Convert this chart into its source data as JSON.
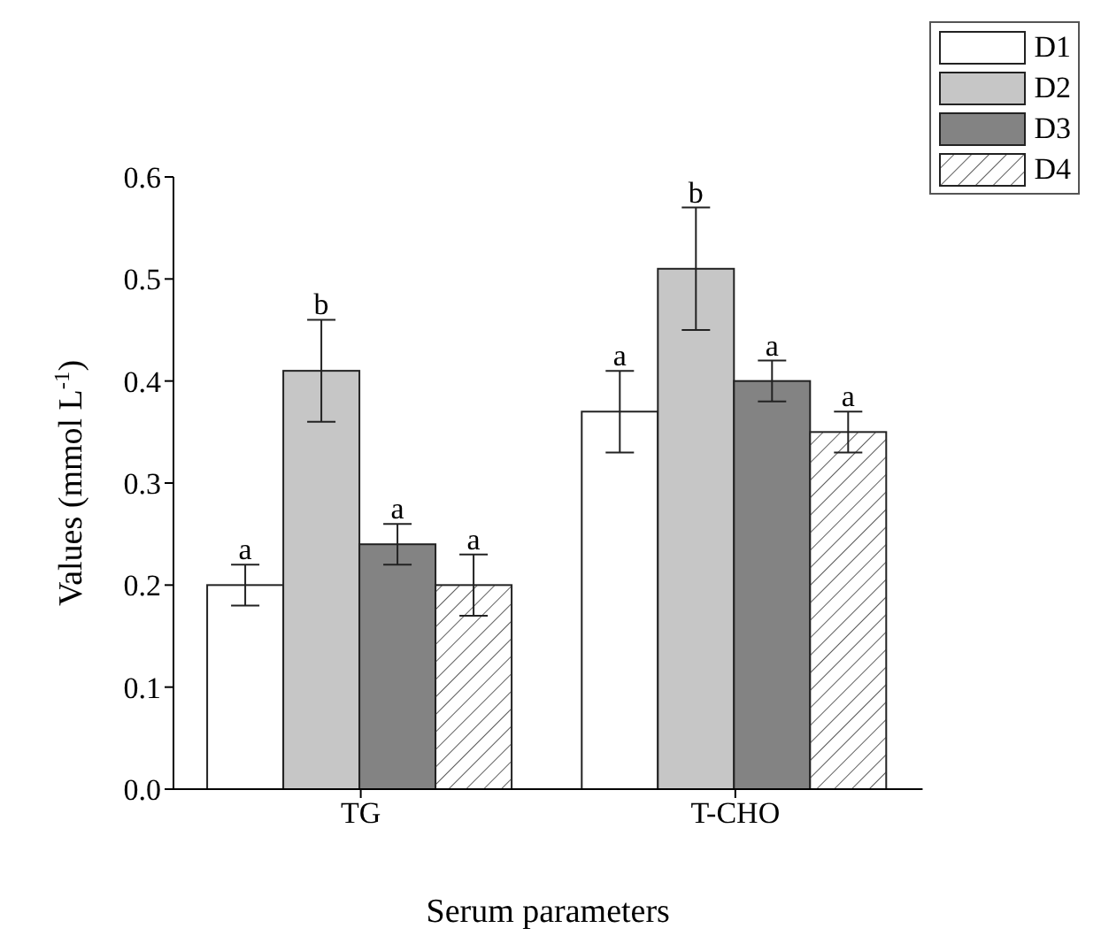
{
  "chart_data": {
    "type": "bar",
    "xlabel": "Serum parameters",
    "ylabel": "Values (mmol L$^{-1}$)",
    "categories": [
      "TG",
      "T-CHO"
    ],
    "series": [
      {
        "name": "D1",
        "color": "#ffffff",
        "values": [
          0.2,
          0.37
        ],
        "errors": [
          0.02,
          0.04
        ]
      },
      {
        "name": "D2",
        "color": "#c6c6c6",
        "values": [
          0.41,
          0.51
        ],
        "errors": [
          0.05,
          0.06
        ]
      },
      {
        "name": "D3",
        "color": "#838383",
        "values": [
          0.24,
          0.4
        ],
        "errors": [
          0.02,
          0.02
        ]
      },
      {
        "name": "D4",
        "color": "#ffffff",
        "values": [
          0.2,
          0.35
        ],
        "errors": [
          0.03,
          0.02
        ]
      }
    ],
    "ylim": [
      0,
      0.6
    ],
    "yticks": [
      {
        "value": 0,
        "label": "0.0"
      },
      0.1,
      0.2,
      0.3,
      0.4,
      0.5,
      0.6
    ],
    "grid": false,
    "legend": "top right",
    "annotations": [
      "a",
      "b",
      "a",
      "a",
      "a",
      "b",
      "a",
      "a"
    ]
  }
}
